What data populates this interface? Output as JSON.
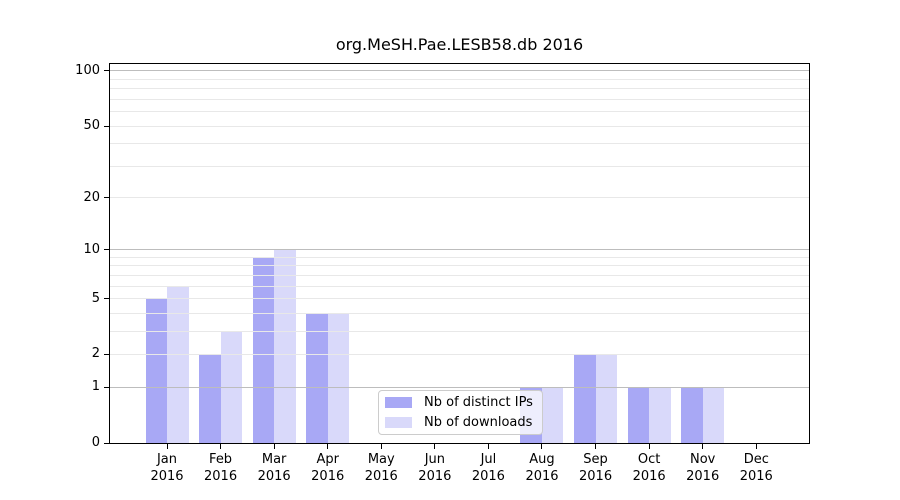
{
  "title": "org.MeSH.Pae.LESB58.db 2016",
  "chart_data": {
    "type": "bar",
    "title": "org.MeSH.Pae.LESB58.db 2016",
    "categories": [
      "Jan",
      "Feb",
      "Mar",
      "Apr",
      "May",
      "Jun",
      "Jul",
      "Aug",
      "Sep",
      "Oct",
      "Nov",
      "Dec"
    ],
    "category_year": "2016",
    "series": [
      {
        "name": "Nb of distinct IPs",
        "color": "#a8a8f5",
        "values": [
          5,
          2,
          9,
          4,
          0,
          0,
          0,
          1,
          2,
          1,
          1,
          0
        ]
      },
      {
        "name": "Nb of downloads",
        "color": "#d9d9fa",
        "values": [
          6,
          3,
          10,
          4,
          0,
          0,
          0,
          1,
          2,
          1,
          1,
          0
        ]
      }
    ],
    "xlabel": "",
    "ylabel": "",
    "yscale": "log10(value+1)",
    "ylim": [
      0,
      111
    ],
    "yticks": [
      0,
      1,
      2,
      5,
      10,
      20,
      50,
      100
    ],
    "grid": {
      "on": true,
      "major_values": [
        1,
        10,
        100
      ],
      "minor_values": [
        2,
        3,
        4,
        5,
        6,
        7,
        8,
        9,
        20,
        30,
        40,
        50,
        60,
        70,
        80,
        90
      ],
      "major_color": "#bdbdbd",
      "minor_color": "#e8e8e8"
    },
    "legend": {
      "position": "inside-bottom-center",
      "entries": [
        "Nb of distinct IPs",
        "Nb of downloads"
      ]
    }
  },
  "colors": {
    "background": "#ffffff",
    "axis": "#000000",
    "bar_distinct_ips": "#a8a8f5",
    "bar_downloads": "#d9d9fa"
  }
}
